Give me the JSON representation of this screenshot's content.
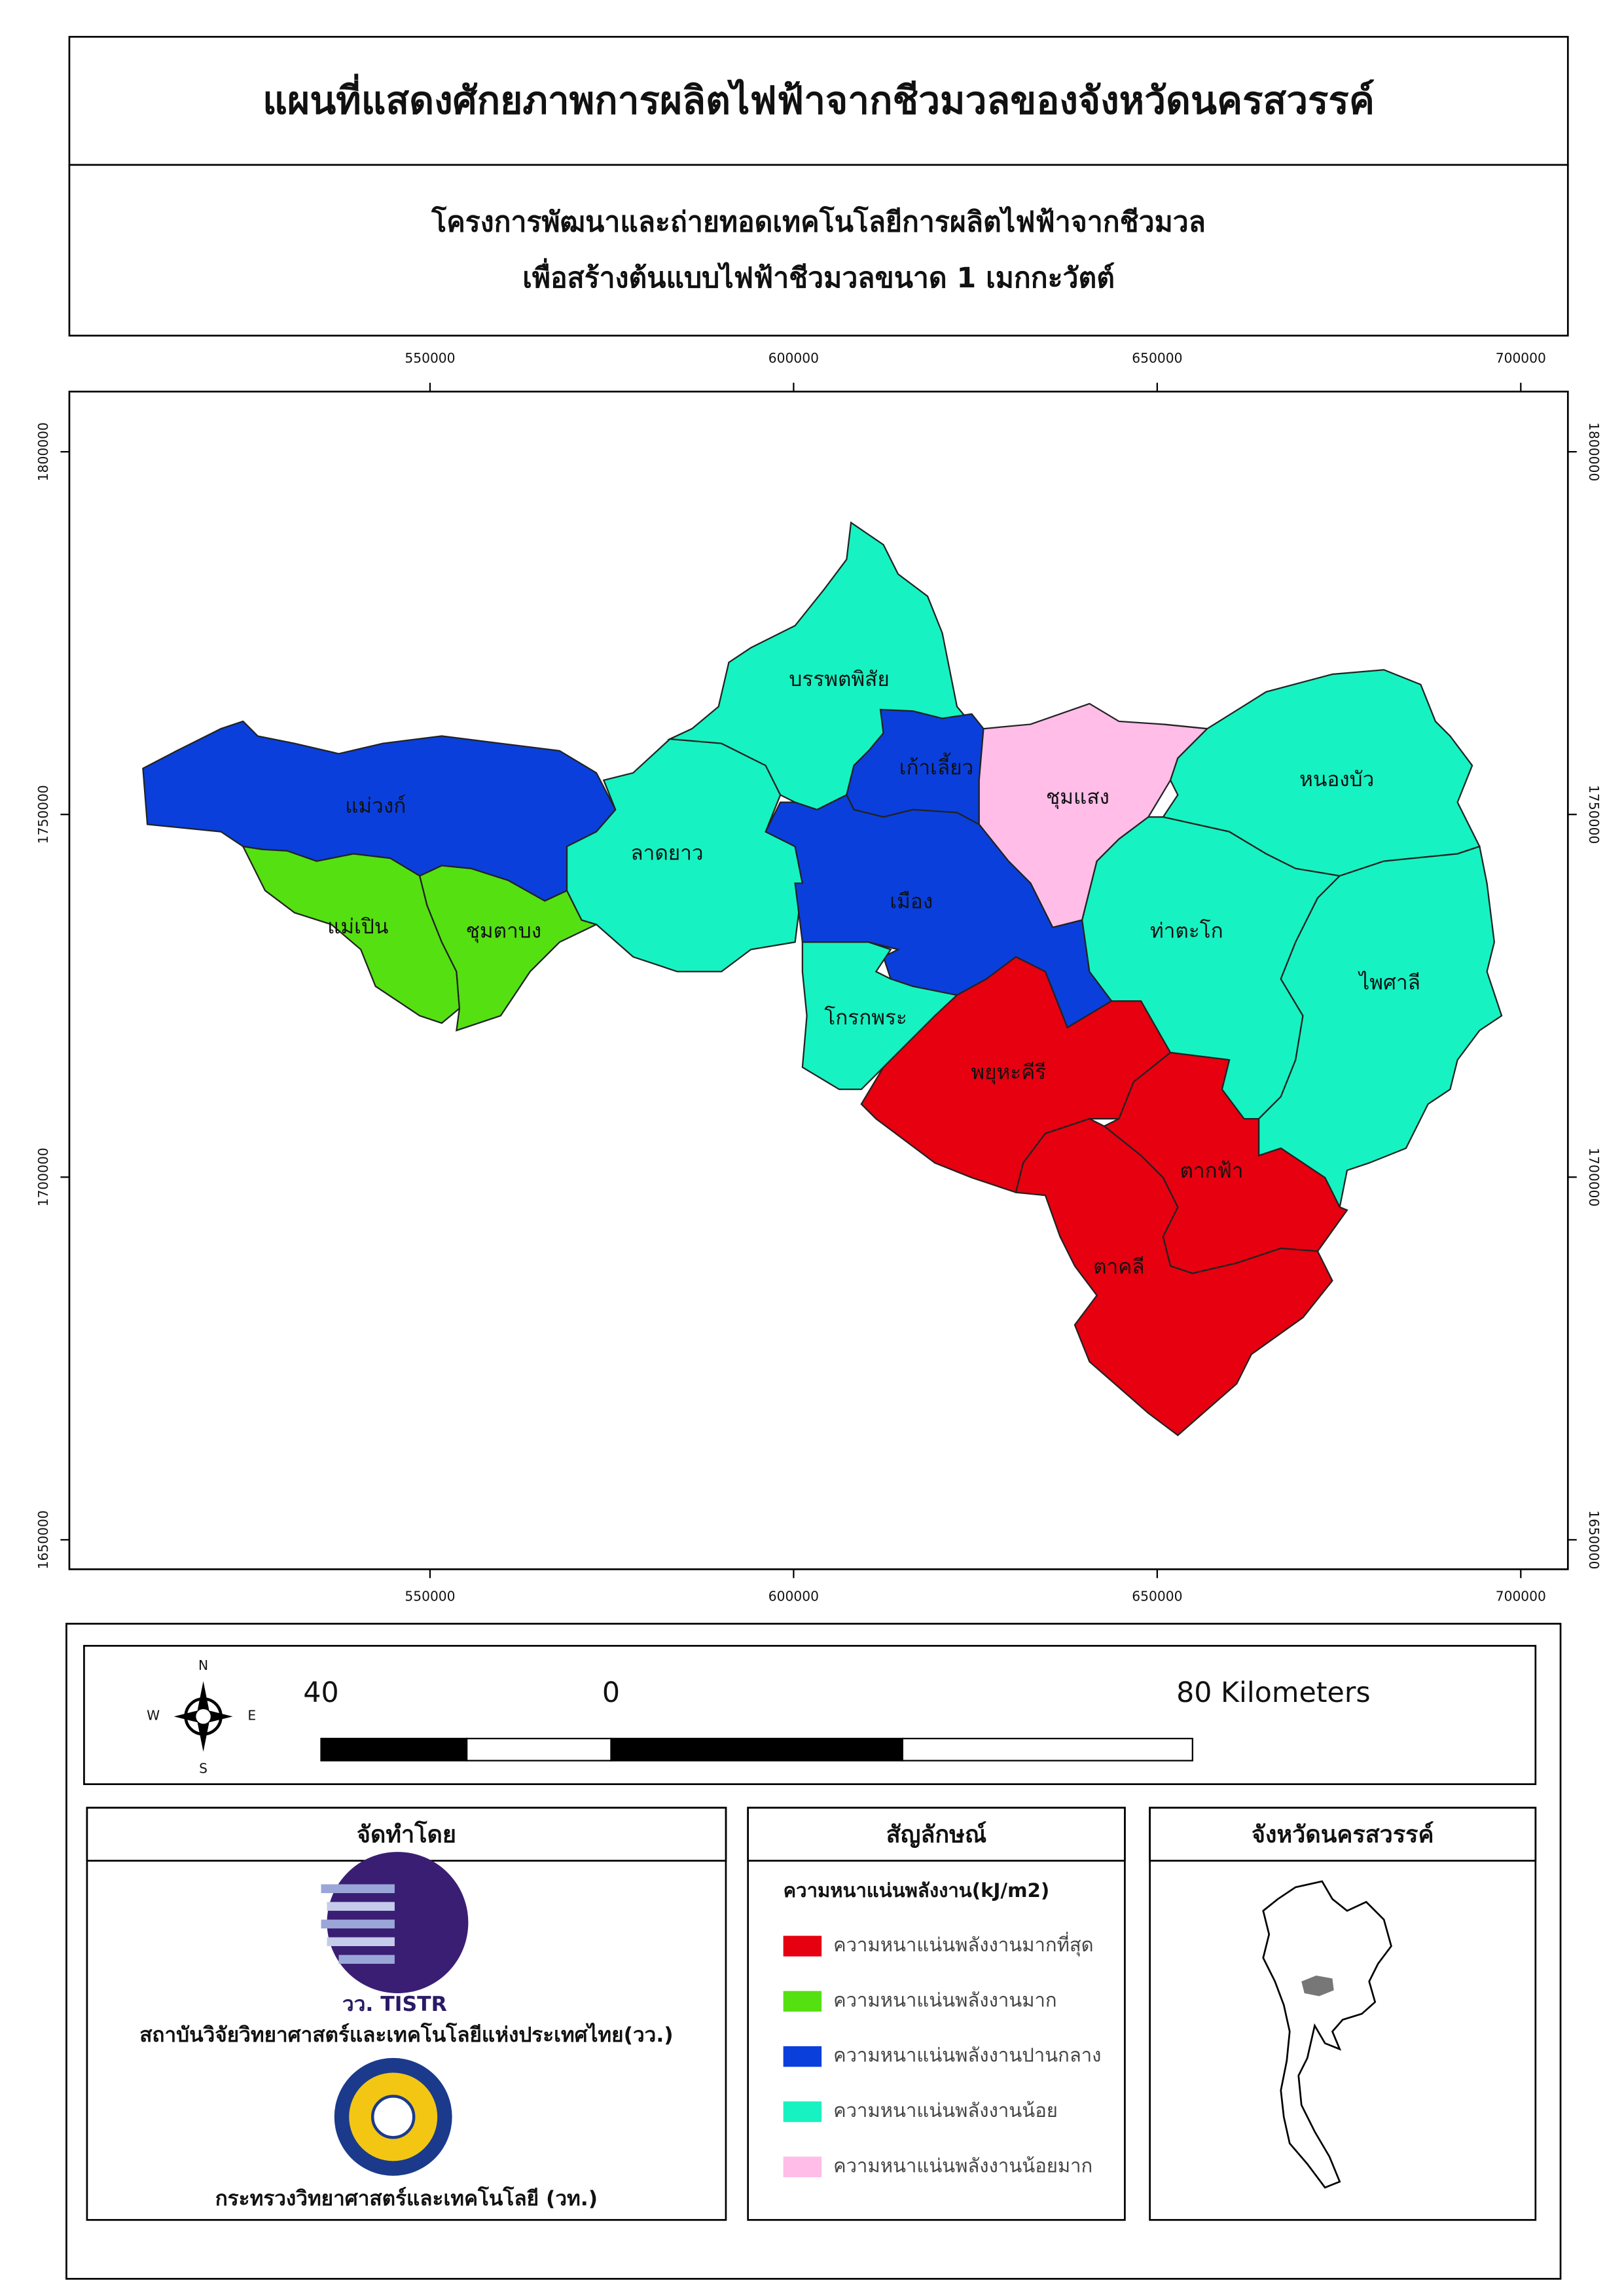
{
  "title": "แผนที่แสดงศักยภาพการผลิตไฟฟ้าจากชีวมวลของจังหวัดนครสวรรค์",
  "subtitle": [
    "โครงการพัฒนาและถ่ายทอดเทคโนโลยีการผลิตไฟฟ้าจากชีวมวล",
    "เพื่อสร้างต้นแบบไฟฟ้าชีวมวลขนาด 1 เมกกะวัตต์"
  ],
  "map": {
    "xlim": [
      500400,
      706480
    ],
    "xticks": [
      550000,
      600000,
      650000,
      700000
    ],
    "ylim": [
      1645940,
      1808300
    ],
    "yticks": [
      1650000,
      1700000,
      1750000,
      1800000
    ],
    "districts": [
      {
        "name": "แม่วงก์",
        "color": "#0a3fdc"
      },
      {
        "name": "แม่เปิน",
        "color": "#55e012"
      },
      {
        "name": "ชุมตาบง",
        "color": "#55e012"
      },
      {
        "name": "ลาดยาว",
        "color": "#17f2c2"
      },
      {
        "name": "บรรพตพิสัย",
        "color": "#17f2c2"
      },
      {
        "name": "เก้าเลี้ยว",
        "color": "#0a3fdc"
      },
      {
        "name": "ชุมแสง",
        "color": "#ffbde8"
      },
      {
        "name": "เมือง",
        "color": "#0a3fdc"
      },
      {
        "name": "โกรกพระ",
        "color": "#17f2c2"
      },
      {
        "name": "พยุหะคีรี",
        "color": "#e60010"
      },
      {
        "name": "หนองบัว",
        "color": "#17f2c2"
      },
      {
        "name": "ท่าตะโก",
        "color": "#17f2c2"
      },
      {
        "name": "ไพศาลี",
        "color": "#17f2c2"
      },
      {
        "name": "ตากฟ้า",
        "color": "#e60010"
      },
      {
        "name": "ตาคลี",
        "color": "#e60010"
      }
    ]
  },
  "compass": {
    "n": "N",
    "e": "E",
    "s": "S",
    "w": "W"
  },
  "scale_bar": {
    "labels": [
      "40",
      "0",
      "80 Kilometers"
    ]
  },
  "producer": {
    "title": "จัดทำโดย",
    "logo_text": "วว. TISTR",
    "org1": "สถาบันวิจัยวิทยาศาสตร์และเทคโนโลยีแห่งประเทศไทย(วว.)",
    "org2": "กระทรวงวิทยาศาสตร์และเทคโนโลยี (วท.)"
  },
  "legend": {
    "title": "สัญลักษณ์",
    "subtitle": "ความหนาแน่นพลังงาน(kJ/m2)",
    "items": [
      {
        "label": "ความหนาแน่นพลังงานมากที่สุด",
        "color": "#e60010"
      },
      {
        "label": "ความหนาแน่นพลังงานมาก",
        "color": "#55e012"
      },
      {
        "label": "ความหนาแน่นพลังงานปานกลาง",
        "color": "#0a3fdc"
      },
      {
        "label": "ความหนาแน่นพลังงานน้อย",
        "color": "#17f2c2"
      },
      {
        "label": "ความหนาแน่นพลังงานน้อยมาก",
        "color": "#ffbde8"
      }
    ]
  },
  "locator": {
    "title": "จังหวัดนครสวรรค์"
  }
}
